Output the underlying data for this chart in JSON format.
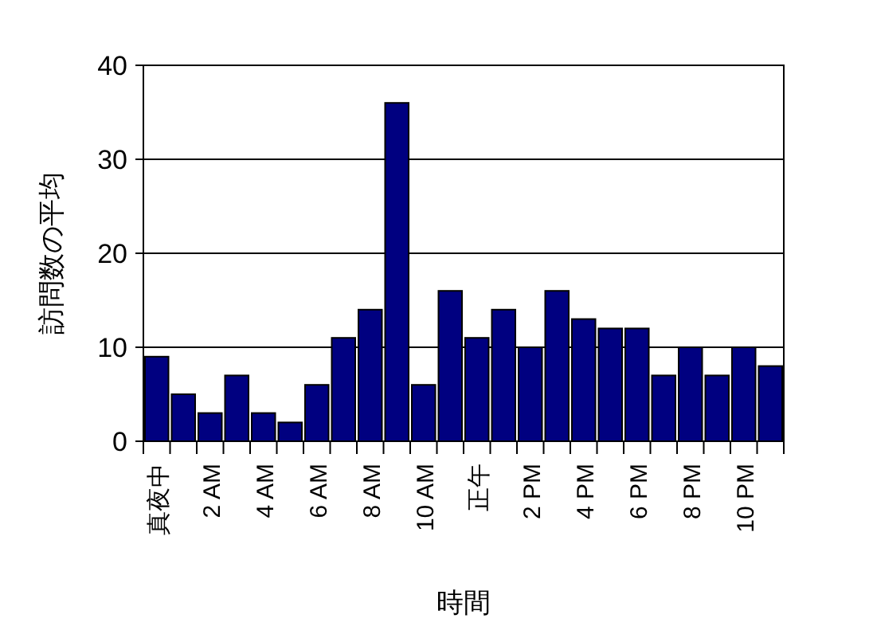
{
  "chart_data": {
    "type": "bar",
    "xlabel": "時間",
    "ylabel": "訪問数の平均",
    "categories": [
      "真夜中",
      null,
      "2 AM",
      null,
      "4 AM",
      null,
      "6 AM",
      null,
      "8 AM",
      null,
      "10 AM",
      null,
      "正午",
      null,
      "2 PM",
      null,
      "4 PM",
      null,
      "6 PM",
      null,
      "8 PM",
      null,
      "10 PM",
      null
    ],
    "values": [
      9,
      5,
      3,
      7,
      3,
      2,
      6,
      11,
      14,
      36,
      6,
      16,
      11,
      14,
      10,
      16,
      13,
      12,
      12,
      7,
      10,
      7,
      10,
      8
    ],
    "color": "#000080",
    "ylim": [
      0,
      40
    ],
    "yticks": [
      0,
      10,
      20,
      30,
      40
    ],
    "grid": "y"
  }
}
